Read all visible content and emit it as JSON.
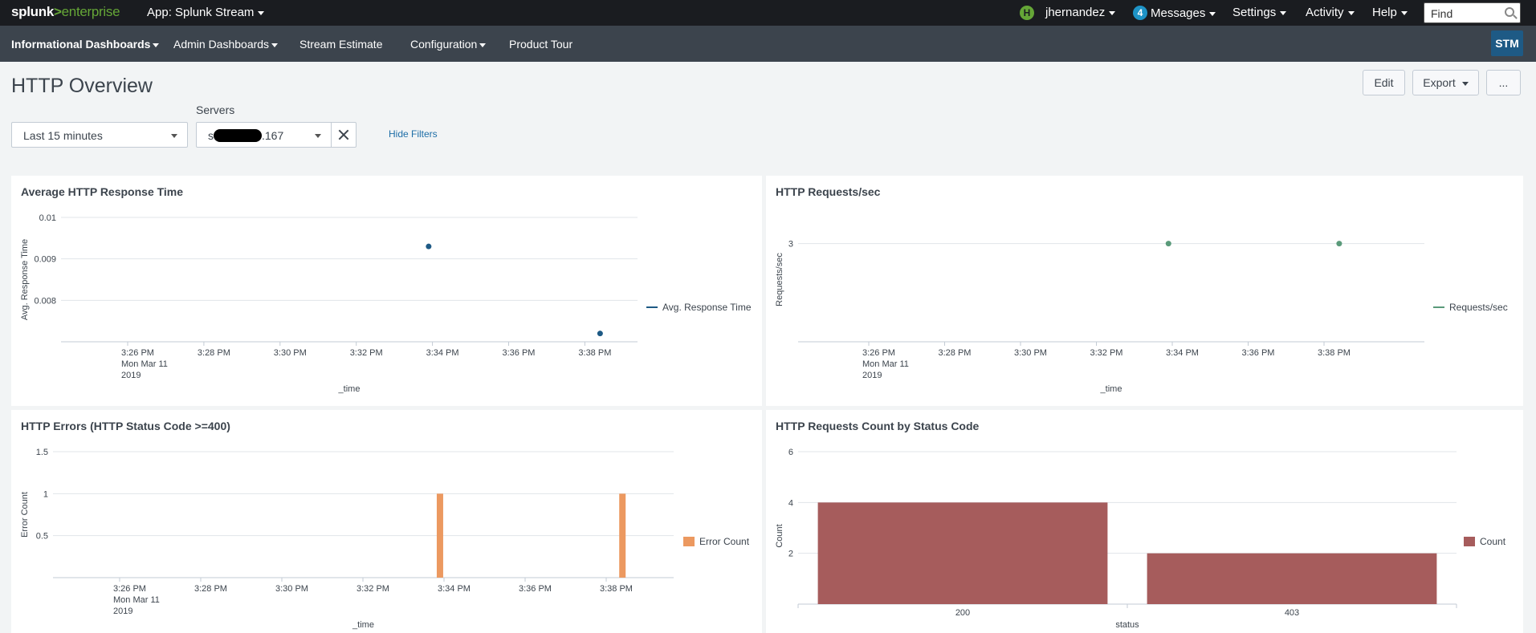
{
  "topbar": {
    "logo_main": "splunk",
    "logo_gt": ">",
    "logo_sub": "enterprise",
    "app_label": "App: Splunk Stream",
    "user_initial": "H",
    "user_name": "jhernandez",
    "messages_count": "4",
    "messages_label": "Messages",
    "settings_label": "Settings",
    "activity_label": "Activity",
    "help_label": "Help",
    "find_placeholder": "Find"
  },
  "nav": {
    "items": [
      {
        "label": "Informational Dashboards"
      },
      {
        "label": "Admin Dashboards"
      },
      {
        "label": "Stream Estimate"
      },
      {
        "label": "Configuration"
      },
      {
        "label": "Product Tour"
      }
    ],
    "app_badge": "STM"
  },
  "header": {
    "title": "HTTP Overview",
    "edit_label": "Edit",
    "export_label": "Export",
    "more_label": "..."
  },
  "filters": {
    "time_value": "Last 15 minutes",
    "servers_label": "Servers",
    "servers_value_prefix": "s",
    "servers_value_suffix": ".167",
    "hide_filters_label": "Hide Filters"
  },
  "colors": {
    "topbar_bg": "#1a1c20",
    "navbar_bg": "#3c444d",
    "accent_green": "#65a637",
    "link_blue": "#1e6ea7",
    "series_blue": "#1e5a85",
    "series_green": "#5a9a7a",
    "series_orange": "#ec9960",
    "series_red": "#a65c5c"
  },
  "chart_data": [
    {
      "id": "avg_response",
      "type": "scatter",
      "title": "Average HTTP Response Time",
      "ylabel": "Avg. Response Time",
      "xlabel": "_time",
      "ylim": [
        0.007,
        0.01
      ],
      "yticks": [
        "0.01",
        "0.009",
        "0.008"
      ],
      "yticks_v": [
        0.01,
        0.009,
        0.008
      ],
      "xticks": [
        "3:26 PM",
        "3:28 PM",
        "3:30 PM",
        "3:32 PM",
        "3:34 PM",
        "3:36 PM",
        "3:38 PM"
      ],
      "x_first_sub": [
        "Mon Mar 11",
        "2019"
      ],
      "series": [
        {
          "name": "Avg. Response Time",
          "points": [
            {
              "x": "3:33:55 PM",
              "xi": 3.95,
              "y": 0.0093
            },
            {
              "x": "3:38:25 PM",
              "xi": 6.2,
              "y": 0.0072
            }
          ]
        }
      ]
    },
    {
      "id": "requests_sec",
      "type": "scatter",
      "title": "HTTP Requests/sec",
      "ylabel": "Requests/sec",
      "xlabel": "_time",
      "yticks": [
        "3"
      ],
      "xticks": [
        "3:26 PM",
        "3:28 PM",
        "3:30 PM",
        "3:32 PM",
        "3:34 PM",
        "3:36 PM",
        "3:38 PM"
      ],
      "x_first_sub": [
        "Mon Mar 11",
        "2019"
      ],
      "series": [
        {
          "name": "Requests/sec",
          "points": [
            {
              "x": "3:33:55 PM",
              "xi": 3.95,
              "y": 3
            },
            {
              "x": "3:38:25 PM",
              "xi": 6.2,
              "y": 3
            }
          ]
        }
      ]
    },
    {
      "id": "errors",
      "type": "bar",
      "title": "HTTP Errors (HTTP Status Code >=400)",
      "ylabel": "Error Count",
      "xlabel": "_time",
      "ylim": [
        0,
        1.5
      ],
      "yticks": [
        "1.5",
        "1",
        "0.5"
      ],
      "yticks_v": [
        1.5,
        1,
        0.5
      ],
      "xticks": [
        "3:26 PM",
        "3:28 PM",
        "3:30 PM",
        "3:32 PM",
        "3:34 PM",
        "3:36 PM",
        "3:38 PM"
      ],
      "x_first_sub": [
        "Mon Mar 11",
        "2019"
      ],
      "series": [
        {
          "name": "Error Count",
          "points": [
            {
              "x": "3:33:55 PM",
              "xi": 3.95,
              "y": 1
            },
            {
              "x": "3:38:25 PM",
              "xi": 6.2,
              "y": 1
            }
          ]
        }
      ]
    },
    {
      "id": "status_count",
      "type": "bar",
      "title": "HTTP Requests Count by Status Code",
      "ylabel": "Count",
      "xlabel": "status",
      "ylim": [
        0,
        6
      ],
      "yticks": [
        "6",
        "4",
        "2"
      ],
      "yticks_v": [
        6,
        4,
        2
      ],
      "categories": [
        "200",
        "403"
      ],
      "series": [
        {
          "name": "Count",
          "values": [
            4,
            2
          ]
        }
      ]
    }
  ]
}
